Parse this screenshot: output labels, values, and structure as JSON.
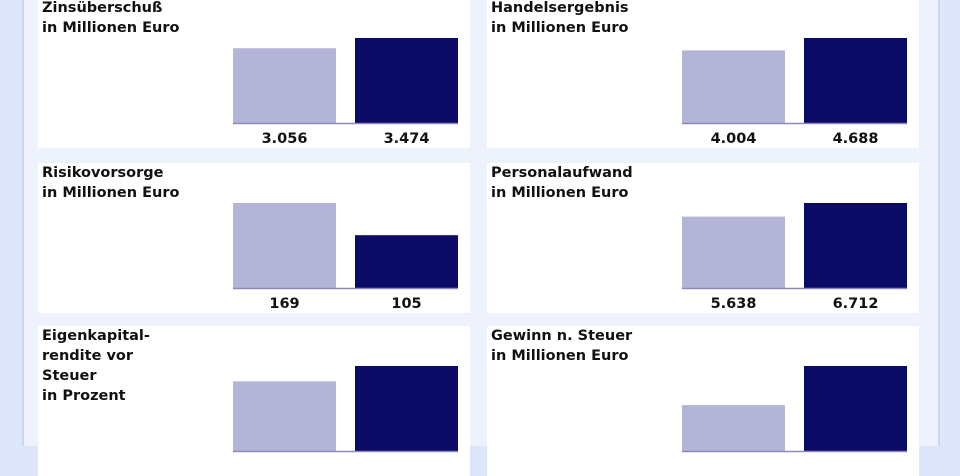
{
  "colors": {
    "prev": "#b4b4d9",
    "curr": "#0b0a66",
    "baseline": "#8a8ab8"
  },
  "chart_data": [
    {
      "type": "bar",
      "title": "Zinsüberschuß\nin Millionen Euro",
      "categories": [
        "",
        ""
      ],
      "values": [
        3056,
        3474
      ],
      "labels": [
        "3.056",
        "3.474"
      ]
    },
    {
      "type": "bar",
      "title": "Handelsergebnis\nin Millionen Euro",
      "categories": [
        "",
        ""
      ],
      "values": [
        4004,
        4688
      ],
      "labels": [
        "4.004",
        "4.688"
      ]
    },
    {
      "type": "bar",
      "title": "Risikovorsorge\nin Millionen Euro",
      "categories": [
        "",
        ""
      ],
      "values": [
        169,
        105
      ],
      "labels": [
        "169",
        "105"
      ]
    },
    {
      "type": "bar",
      "title": "Personalaufwand\nin Millionen Euro",
      "categories": [
        "",
        ""
      ],
      "values": [
        5638,
        6712
      ],
      "labels": [
        "5.638",
        "6.712"
      ]
    },
    {
      "type": "bar",
      "title": "Eigenkapital-\nrendite vor\nSteuer\nin Prozent",
      "categories": [
        "",
        ""
      ],
      "values": [
        82,
        100
      ],
      "labels": [
        "",
        ""
      ]
    },
    {
      "type": "bar",
      "title": "Gewinn n. Steuer\nin Millionen Euro",
      "categories": [
        "",
        ""
      ],
      "values": [
        54,
        100
      ],
      "labels": [
        "",
        ""
      ]
    }
  ]
}
